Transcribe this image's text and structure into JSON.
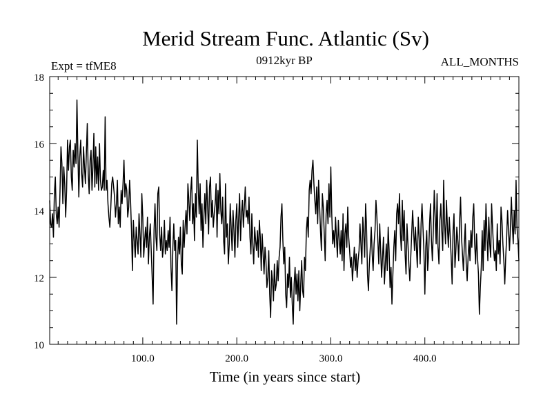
{
  "chart_data": {
    "type": "line",
    "title": "Merid Stream Func. Atlantic (Sv)",
    "left_label": "Expt = tfME8",
    "center_label": "0912kyr BP",
    "right_label": "ALL_MONTHS",
    "xlabel": "Time (in years since start)",
    "ylabel": "",
    "xlim": [
      1,
      500
    ],
    "ylim": [
      10,
      18
    ],
    "x_ticks": [
      100,
      200,
      300,
      400
    ],
    "x_tick_labels": [
      "100.0",
      "200.0",
      "300.0",
      "400.0"
    ],
    "y_ticks": [
      10,
      12,
      14,
      16,
      18
    ],
    "y_tick_labels": [
      "10",
      "12",
      "14",
      "16",
      "18"
    ],
    "x_start": 1,
    "x_step": 1,
    "values": [
      14.3,
      13.6,
      13.5,
      13.9,
      13.2,
      14.5,
      15.0,
      13.9,
      13.6,
      14.1,
      13.5,
      14.6,
      15.9,
      15.4,
      14.2,
      15.3,
      14.8,
      13.8,
      14.6,
      16.1,
      15.2,
      15.9,
      16.1,
      15.0,
      14.6,
      15.8,
      15.3,
      16.0,
      15.4,
      17.3,
      15.7,
      14.4,
      15.6,
      16.1,
      15.1,
      14.7,
      15.9,
      15.3,
      14.8,
      15.7,
      16.6,
      15.1,
      14.5,
      15.5,
      15.8,
      14.6,
      15.3,
      16.3,
      14.7,
      15.9,
      14.8,
      15.6,
      14.6,
      16.0,
      14.9,
      14.6,
      14.7,
      15.2,
      14.6,
      16.8,
      14.6,
      14.9,
      14.2,
      13.8,
      13.5,
      14.1,
      14.8,
      15.0,
      14.7,
      14.4,
      13.8,
      14.2,
      14.9,
      13.6,
      14.1,
      13.5,
      14.6,
      14.2,
      14.8,
      15.5,
      14.4,
      14.8,
      14.6,
      13.8,
      14.1,
      14.9,
      14.3,
      13.4,
      12.2,
      13.7,
      13.1,
      12.6,
      13.5,
      13.1,
      12.7,
      13.9,
      13.3,
      12.6,
      14.5,
      13.8,
      12.6,
      13.1,
      13.5,
      12.9,
      13.8,
      12.4,
      13.2,
      13.6,
      12.8,
      12.0,
      11.2,
      13.4,
      14.2,
      13.2,
      12.8,
      14.5,
      14.7,
      13.3,
      12.8,
      13.5,
      12.6,
      12.9,
      13.7,
      12.7,
      13.1,
      12.8,
      13.4,
      12.9,
      13.8,
      12.3,
      11.6,
      12.9,
      13.6,
      12.8,
      13.1,
      10.6,
      12.5,
      13.2,
      12.7,
      13.5,
      12.4,
      12.1,
      13.7,
      12.9,
      13.5,
      14.0,
      13.3,
      14.8,
      14.3,
      13.7,
      14.6,
      15.0,
      13.6,
      14.2,
      13.1,
      14.5,
      13.8,
      16.1,
      14.7,
      13.9,
      14.8,
      13.4,
      14.2,
      12.9,
      13.8,
      14.5,
      13.6,
      14.9,
      14.1,
      13.3,
      14.7,
      15.0,
      13.8,
      14.3,
      13.5,
      13.9,
      14.2,
      14.8,
      13.2,
      14.6,
      13.9,
      15.1,
      14.0,
      13.6,
      14.4,
      13.1,
      12.7,
      14.8,
      13.2,
      13.6,
      12.4,
      13.0,
      14.2,
      13.5,
      12.8,
      14.0,
      13.4,
      12.6,
      13.7,
      14.2,
      12.9,
      13.8,
      14.5,
      13.1,
      13.9,
      14.3,
      13.5,
      14.1,
      14.7,
      13.8,
      14.0,
      13.6,
      14.4,
      13.2,
      12.7,
      13.9,
      13.0,
      12.4,
      13.5,
      13.1,
      12.8,
      13.4,
      12.6,
      13.7,
      13.2,
      12.2,
      13.3,
      12.7,
      12.1,
      12.9,
      12.5,
      11.7,
      12.0,
      12.8,
      11.5,
      10.8,
      12.2,
      11.9,
      11.3,
      12.4,
      11.6,
      11.8,
      12.5,
      11.9,
      12.6,
      12.9,
      13.8,
      14.2,
      13.1,
      12.4,
      12.9,
      11.5,
      11.1,
      12.1,
      11.7,
      12.6,
      11.4,
      12.0,
      11.2,
      10.6,
      11.8,
      12.3,
      11.5,
      12.1,
      11.3,
      12.2,
      11.0,
      11.8,
      12.5,
      11.6,
      11.4,
      12.6,
      12.2,
      13.4,
      13.8,
      13.2,
      14.6,
      14.9,
      14.5,
      15.2,
      15.5,
      14.8,
      14.3,
      13.9,
      14.7,
      13.6,
      14.9,
      14.2,
      13.4,
      12.8,
      14.5,
      14.1,
      13.3,
      12.5,
      13.9,
      14.3,
      13.6,
      14.8,
      13.8,
      15.3,
      13.9,
      13.0,
      13.4,
      12.9,
      13.8,
      13.2,
      12.6,
      13.7,
      13.1,
      12.7,
      13.4,
      12.5,
      13.9,
      12.2,
      13.3,
      13.6,
      12.9,
      14.1,
      13.2,
      12.8,
      12.3,
      12.6,
      11.9,
      12.4,
      12.9,
      12.2,
      12.7,
      12.0,
      12.5,
      12.8,
      13.6,
      13.0,
      12.4,
      13.8,
      13.3,
      12.6,
      14.2,
      13.5,
      12.1,
      11.6,
      12.4,
      12.9,
      13.5,
      12.7,
      12.2,
      13.0,
      13.4,
      14.3,
      13.8,
      13.1,
      12.4,
      13.6,
      12.8,
      12.0,
      12.6,
      13.2,
      11.8,
      12.4,
      13.0,
      12.2,
      13.5,
      12.8,
      11.7,
      12.3,
      11.2,
      12.1,
      12.9,
      13.4,
      12.5,
      13.9,
      14.2,
      13.6,
      14.5,
      13.3,
      12.8,
      14.3,
      13.1,
      14.0,
      12.7,
      12.1,
      13.6,
      13.0,
      12.4,
      11.9,
      12.6,
      13.3,
      14.0,
      13.4,
      12.8,
      13.5,
      12.9,
      12.3,
      13.8,
      13.2,
      12.4,
      13.6,
      14.2,
      13.5,
      12.8,
      11.5,
      12.9,
      13.4,
      12.2,
      12.7,
      13.6,
      14.2,
      13.1,
      12.5,
      13.4,
      14.6,
      13.8,
      13.0,
      14.5,
      12.9,
      12.4,
      13.7,
      14.2,
      13.4,
      12.8,
      14.9,
      13.6,
      13.0,
      14.3,
      13.5,
      12.9,
      13.8,
      13.2,
      12.6,
      11.8,
      13.4,
      13.9,
      12.3,
      12.8,
      13.5,
      13.1,
      12.5,
      13.7,
      14.4,
      13.2,
      12.7,
      12.2,
      13.0,
      13.6,
      12.4,
      11.9,
      12.6,
      13.1,
      12.5,
      13.4,
      12.9,
      13.8,
      14.2,
      13.0,
      12.4,
      13.3,
      12.6,
      12.1,
      10.9,
      11.7,
      12.3,
      13.4,
      12.2,
      13.7,
      12.8,
      14.2,
      13.3,
      12.5,
      13.8,
      13.0,
      12.6,
      14.2,
      13.5,
      12.9,
      12.5,
      12.8,
      12.2,
      13.6,
      12.7,
      13.1,
      12.4,
      14.1,
      13.7,
      13.0,
      12.5,
      11.8,
      12.6,
      13.2,
      14.0,
      13.4,
      12.8,
      13.5,
      14.4,
      13.6,
      13.0,
      14.0,
      13.3,
      14.9,
      13.5,
      13.1,
      12.5
    ]
  }
}
